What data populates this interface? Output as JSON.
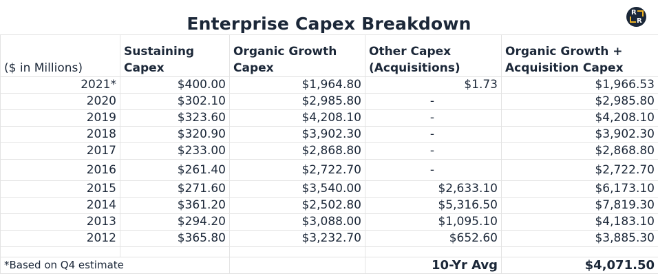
{
  "title": "Enterprise Capex Breakdown",
  "columns": {
    "unit": "($ in Millions)",
    "sustaining": [
      "Sustaining",
      "Capex"
    ],
    "organic": [
      "Organic Growth",
      "Capex"
    ],
    "other": [
      "Other Capex",
      "(Acquisitions)"
    ],
    "total": [
      "Organic Growth +",
      "Acquisition Capex"
    ]
  },
  "rows": [
    {
      "year": "2021*",
      "sustaining": "$400.00",
      "organic": "$1,964.80",
      "other": "$1.73",
      "total": "$1,966.53"
    },
    {
      "year": "2020",
      "sustaining": "$302.10",
      "organic": "$2,985.80",
      "other": "-",
      "total": "$2,985.80"
    },
    {
      "year": "2019",
      "sustaining": "$323.60",
      "organic": "$4,208.10",
      "other": "-",
      "total": "$4,208.10"
    },
    {
      "year": "2018",
      "sustaining": "$320.90",
      "organic": "$3,902.30",
      "other": "-",
      "total": "$3,902.30"
    },
    {
      "year": "2017",
      "sustaining": "$233.00",
      "organic": "$2,868.80",
      "other": "-",
      "total": "$2,868.80"
    },
    {
      "year": "2016",
      "sustaining": "$261.40",
      "organic": "$2,722.70",
      "other": "-",
      "total": "$2,722.70"
    },
    {
      "year": "2015",
      "sustaining": "$271.60",
      "organic": "$3,540.00",
      "other": "$2,633.10",
      "total": "$6,173.10"
    },
    {
      "year": "2014",
      "sustaining": "$361.20",
      "organic": "$2,502.80",
      "other": "$5,316.50",
      "total": "$7,819.30"
    },
    {
      "year": "2013",
      "sustaining": "$294.20",
      "organic": "$3,088.00",
      "other": "$1,095.10",
      "total": "$4,183.10"
    },
    {
      "year": "2012",
      "sustaining": "$365.80",
      "organic": "$3,232.70",
      "other": "$652.60",
      "total": "$3,885.30"
    }
  ],
  "footer": {
    "note": "*Based on Q4 estimate",
    "avg_label": "10-Yr Avg",
    "avg_value": "$4,071.50"
  },
  "logo": {
    "letter_top": "R",
    "letter_bottom": "R",
    "bg_color": "#1b2738",
    "accent_color": "#f0b323"
  }
}
